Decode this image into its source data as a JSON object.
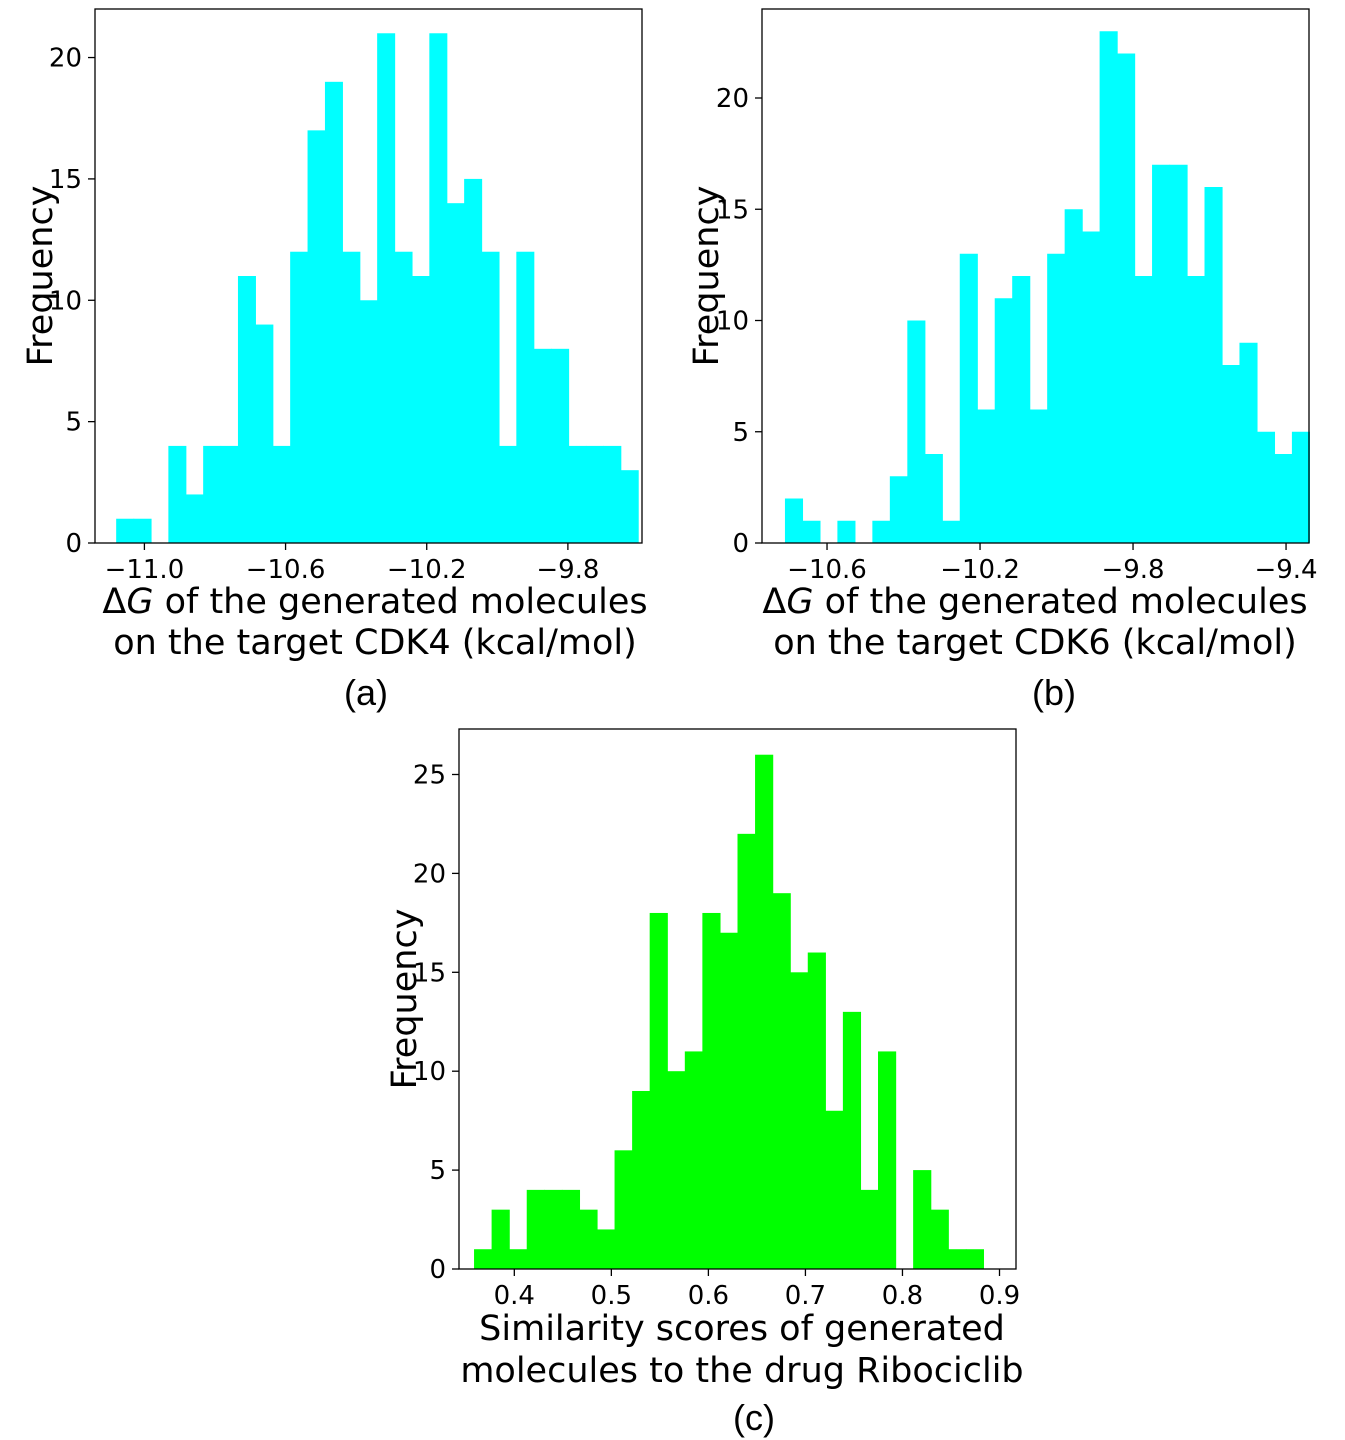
{
  "chart_data": [
    {
      "id": "a",
      "type": "bar",
      "panel_label": "(a)",
      "color": "#00ffff",
      "ylabel": "Frequency",
      "xlabel_lines": [
        "of the generated molecules",
        "on the target CDK4 (kcal/mol)"
      ],
      "xlabel_prefix": "ΔG",
      "xlim": [
        -11.14,
        -9.59
      ],
      "ylim": [
        0,
        22.0
      ],
      "xticks": [
        -11.0,
        -10.6,
        -10.2,
        -9.8
      ],
      "xtick_labels": [
        "−11.0",
        "−10.6",
        "−10.2",
        "−9.8"
      ],
      "yticks": [
        0,
        5,
        10,
        15,
        20
      ],
      "ytick_labels": [
        "0",
        "5",
        "10",
        "15",
        "20"
      ],
      "bin_start": -11.08,
      "bin_width": 0.0493,
      "values": [
        1,
        1,
        0,
        4,
        2,
        4,
        4,
        11,
        9,
        4,
        12,
        17,
        19,
        12,
        10,
        21,
        12,
        11,
        21,
        14,
        15,
        12,
        4,
        12,
        8,
        8,
        4,
        4,
        4,
        3
      ]
    },
    {
      "id": "b",
      "type": "bar",
      "panel_label": "(b)",
      "color": "#00ffff",
      "ylabel": "Frequency",
      "xlabel_lines": [
        "of the generated molecules",
        "on the target CDK6 (kcal/mol)"
      ],
      "xlabel_prefix": "ΔG",
      "xlim": [
        -10.77,
        -9.34
      ],
      "ylim": [
        0,
        24.0
      ],
      "xticks": [
        -10.6,
        -10.2,
        -9.8,
        -9.4
      ],
      "xtick_labels": [
        "−10.6",
        "−10.2",
        "−9.8",
        "−9.4"
      ],
      "yticks": [
        0,
        5,
        10,
        15,
        20
      ],
      "ytick_labels": [
        "0",
        "5",
        "10",
        "15",
        "20"
      ],
      "bin_start": -10.71,
      "bin_width": 0.0457,
      "values": [
        2,
        1,
        0,
        1,
        0,
        1,
        3,
        10,
        4,
        1,
        13,
        6,
        11,
        12,
        6,
        13,
        15,
        14,
        23,
        22,
        12,
        17,
        17,
        12,
        16,
        8,
        9,
        5,
        4,
        5
      ]
    },
    {
      "id": "c",
      "type": "bar",
      "panel_label": "(c)",
      "color": "#00ff00",
      "ylabel": "Frequency",
      "xlabel_lines": [
        "Similarity scores of generated",
        "molecules to the drug Ribociclib"
      ],
      "xlabel_prefix": "",
      "xlim": [
        0.343,
        0.917
      ],
      "ylim": [
        0,
        27.3
      ],
      "xticks": [
        0.4,
        0.5,
        0.6,
        0.7,
        0.8,
        0.9
      ],
      "xtick_labels": [
        "0.4",
        "0.5",
        "0.6",
        "0.7",
        "0.8",
        "0.9"
      ],
      "yticks": [
        0,
        5,
        10,
        15,
        20,
        25
      ],
      "ytick_labels": [
        "0",
        "5",
        "10",
        "15",
        "20",
        "25"
      ],
      "bin_start": 0.3585,
      "bin_width": 0.0181,
      "values": [
        1,
        3,
        1,
        4,
        4,
        4,
        3,
        2,
        6,
        9,
        18,
        10,
        11,
        18,
        17,
        22,
        26,
        19,
        15,
        16,
        8,
        13,
        4,
        11,
        0,
        5,
        3,
        1,
        1,
        0
      ]
    }
  ]
}
